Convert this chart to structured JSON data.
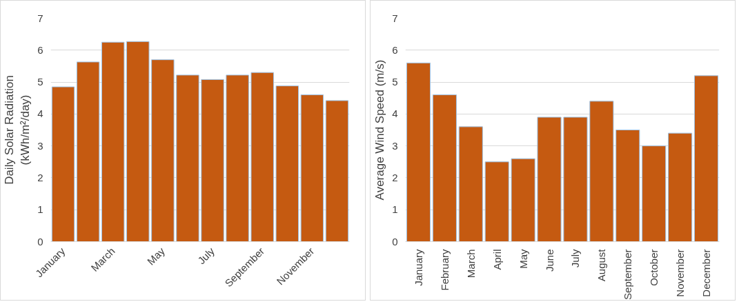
{
  "chart_data": [
    {
      "type": "bar",
      "ylabel": "Daily Solar Radiation\n(kWh/m²/day)",
      "categories": [
        "January",
        null,
        "March",
        null,
        "May",
        null,
        "July",
        null,
        "September",
        null,
        "November",
        null
      ],
      "values": [
        4.85,
        5.63,
        6.25,
        6.27,
        5.7,
        5.22,
        5.08,
        5.22,
        5.3,
        4.88,
        4.6,
        4.42
      ],
      "color": "#c55a11",
      "ylim": [
        0,
        7
      ],
      "yticks": [
        0,
        1,
        2,
        3,
        4,
        5,
        6,
        7
      ],
      "grid": "y"
    },
    {
      "type": "bar",
      "ylabel": "Average Wind Speed (m/s)",
      "categories": [
        "January",
        "February",
        "March",
        "April",
        "May",
        "June",
        "July",
        "August",
        "September",
        "October",
        "November",
        "December"
      ],
      "values": [
        5.6,
        4.6,
        3.6,
        2.5,
        2.6,
        3.9,
        3.9,
        4.4,
        3.5,
        3.0,
        3.4,
        5.2
      ],
      "color": "#c55a11",
      "ylim": [
        0,
        7
      ],
      "yticks": [
        0,
        1,
        2,
        3,
        4,
        5,
        6,
        7
      ],
      "grid": "y"
    }
  ]
}
